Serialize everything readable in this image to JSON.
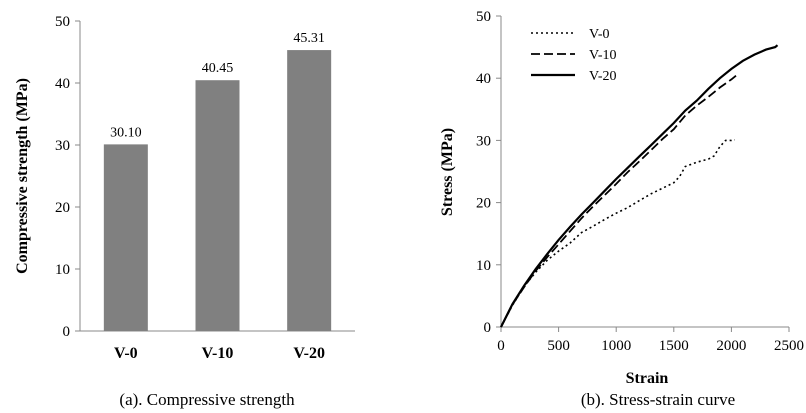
{
  "chart_data": [
    {
      "type": "bar",
      "categories": [
        "V-0",
        "V-10",
        "V-20"
      ],
      "values": [
        30.1,
        40.45,
        45.31
      ],
      "data_labels": [
        "30.10",
        "40.45",
        "45.31"
      ],
      "ylabel": "Compressive strength (MPa)",
      "ylim": [
        0,
        50
      ],
      "yticks": [
        "0",
        "10",
        "20",
        "30",
        "40",
        "50"
      ],
      "caption": "(a). Compressive strength",
      "bar_color": "#808080",
      "grid": false
    },
    {
      "type": "line",
      "xlabel": "Strain",
      "ylabel": "Stress (MPa)",
      "xlim": [
        0,
        2500
      ],
      "ylim": [
        0,
        50
      ],
      "xticks": [
        "0",
        "500",
        "1000",
        "1500",
        "2000",
        "2500"
      ],
      "yticks": [
        "0",
        "10",
        "20",
        "30",
        "40",
        "50"
      ],
      "caption": "(b). Stress-strain curve",
      "legend_position": "top-left",
      "grid": false,
      "series": [
        {
          "name": "V-0",
          "style": "dotted",
          "x": [
            0,
            100,
            200,
            300,
            400,
            500,
            600,
            700,
            800,
            900,
            1000,
            1100,
            1200,
            1300,
            1400,
            1500,
            1550,
            1600,
            1700,
            1800,
            1850,
            1900,
            1950,
            2000,
            2030
          ],
          "y": [
            0,
            3.5,
            6.5,
            8.8,
            10.7,
            12.2,
            13.5,
            15.2,
            16.2,
            17.3,
            18.3,
            19.2,
            20.3,
            21.4,
            22.3,
            23.2,
            24.2,
            25.8,
            26.5,
            27.0,
            27.5,
            29.0,
            30.0,
            30.0,
            30.1
          ]
        },
        {
          "name": "V-10",
          "style": "dashed",
          "x": [
            0,
            100,
            200,
            300,
            400,
            500,
            600,
            700,
            800,
            900,
            1000,
            1100,
            1200,
            1300,
            1400,
            1500,
            1600,
            1700,
            1800,
            1900,
            2000,
            2040
          ],
          "y": [
            0,
            3.6,
            6.4,
            9.0,
            11.2,
            13.3,
            15.4,
            17.5,
            19.4,
            21.2,
            23.0,
            24.9,
            26.6,
            28.4,
            30.2,
            31.8,
            34.0,
            35.6,
            37.0,
            38.5,
            39.8,
            40.4
          ]
        },
        {
          "name": "V-20",
          "style": "solid",
          "x": [
            0,
            100,
            200,
            300,
            400,
            500,
            600,
            700,
            800,
            900,
            1000,
            1100,
            1200,
            1300,
            1400,
            1500,
            1600,
            1700,
            1800,
            1900,
            2000,
            2100,
            2200,
            2300,
            2380,
            2400
          ],
          "y": [
            0,
            3.7,
            6.6,
            9.3,
            11.7,
            14.0,
            16.1,
            18.1,
            20.0,
            21.9,
            23.8,
            25.6,
            27.4,
            29.2,
            31.0,
            32.8,
            34.8,
            36.4,
            38.3,
            40.0,
            41.5,
            42.8,
            43.8,
            44.6,
            45.0,
            45.3
          ]
        }
      ]
    }
  ]
}
